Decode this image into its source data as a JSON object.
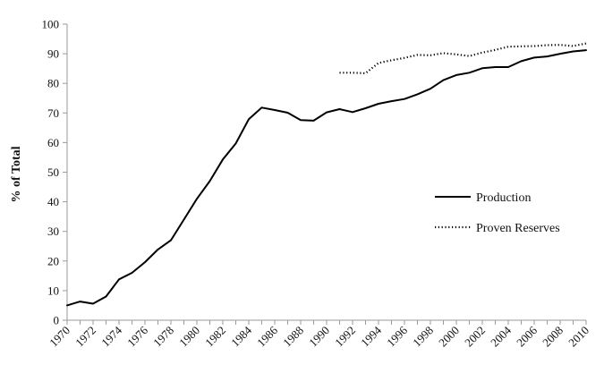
{
  "chart_data": {
    "type": "line",
    "title": "",
    "xlabel": "",
    "ylabel": "% of Total",
    "xlim": [
      1970,
      2010
    ],
    "ylim": [
      0,
      100
    ],
    "grid": false,
    "legend_position": "right",
    "y_ticks": [
      "0",
      "10",
      "20",
      "30",
      "40",
      "50",
      "60",
      "70",
      "80",
      "90",
      "100"
    ],
    "x_ticks": [
      "1970",
      "1972",
      "1974",
      "1976",
      "1978",
      "1980",
      "1982",
      "1984",
      "1986",
      "1988",
      "1990",
      "1992",
      "1994",
      "1996",
      "1998",
      "2000",
      "2002",
      "2004",
      "2006",
      "2008",
      "2010"
    ],
    "series": [
      {
        "name": "Production",
        "style": "solid",
        "color": "#000000",
        "x": [
          1970,
          1971,
          1972,
          1973,
          1974,
          1975,
          1976,
          1977,
          1978,
          1979,
          1980,
          1981,
          1982,
          1983,
          1984,
          1985,
          1986,
          1987,
          1988,
          1989,
          1990,
          1991,
          1992,
          1993,
          1994,
          1995,
          1996,
          1997,
          1998,
          1999,
          2000,
          2001,
          2002,
          2003,
          2004,
          2005,
          2006,
          2007,
          2008,
          2009,
          2010
        ],
        "values": [
          5,
          6.3,
          5.6,
          8,
          13.8,
          16,
          19.6,
          23.9,
          27,
          34,
          41,
          47,
          54.3,
          59.7,
          67.9,
          71.8,
          71,
          70.1,
          67.6,
          67.4,
          70.2,
          71.3,
          70.3,
          71.6,
          73.1,
          74,
          74.7,
          76.3,
          78.2,
          81.1,
          82.8,
          83.6,
          85.1,
          85.5,
          85.5,
          87.5,
          88.7,
          89.1,
          90,
          90.8,
          91.2
        ]
      },
      {
        "name": "Proven Reserves",
        "style": "dotted",
        "color": "#000000",
        "x": [
          1991,
          1992,
          1993,
          1994,
          1995,
          1996,
          1997,
          1998,
          1999,
          2000,
          2001,
          2002,
          2003,
          2004,
          2005,
          2006,
          2007,
          2008,
          2009,
          2010
        ],
        "values": [
          83.6,
          83.6,
          83.4,
          86.9,
          87.8,
          88.6,
          89.6,
          89.5,
          90.2,
          89.8,
          89.2,
          90.4,
          91.3,
          92.4,
          92.5,
          92.6,
          92.9,
          93,
          92.6,
          93.5
        ]
      }
    ]
  }
}
